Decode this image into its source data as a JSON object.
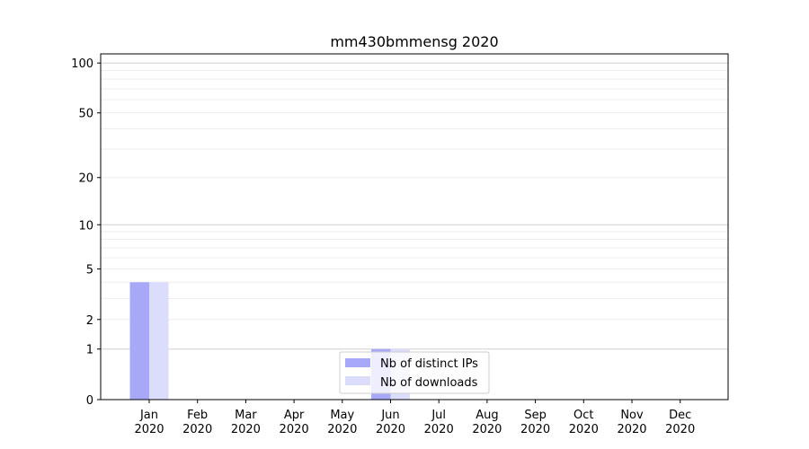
{
  "chart_data": {
    "type": "bar",
    "title": "mm430bmmensg 2020",
    "xlabel": "",
    "ylabel": "",
    "yscale": "log(1+x)",
    "ylim": [
      0,
      114
    ],
    "yticks": [
      0,
      1,
      2,
      5,
      10,
      20,
      50,
      100
    ],
    "categories": [
      "Jan\n2020",
      "Feb\n2020",
      "Mar\n2020",
      "Apr\n2020",
      "May\n2020",
      "Jun\n2020",
      "Jul\n2020",
      "Aug\n2020",
      "Sep\n2020",
      "Oct\n2020",
      "Nov\n2020",
      "Dec\n2020"
    ],
    "series": [
      {
        "name": "Nb of distinct IPs",
        "color": "#a8a8f8",
        "values": [
          4,
          0,
          0,
          0,
          0,
          1,
          0,
          0,
          0,
          0,
          0,
          0
        ]
      },
      {
        "name": "Nb of downloads",
        "color": "#dcdcfc",
        "values": [
          4,
          0,
          0,
          0,
          0,
          1,
          0,
          0,
          0,
          0,
          0,
          0
        ]
      }
    ],
    "grid": true,
    "legend": "lower-center"
  }
}
